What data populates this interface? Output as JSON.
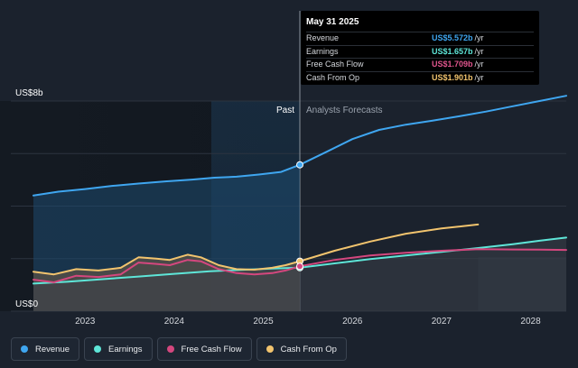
{
  "chart_data": {
    "type": "line",
    "y_axis_labels": {
      "top": "US$8b",
      "bottom": "US$0"
    },
    "ylim": [
      0,
      8
    ],
    "x_ticks": [
      "2023",
      "2024",
      "2025",
      "2026",
      "2027",
      "2028"
    ],
    "xlim": [
      2022.42,
      2028.4
    ],
    "divider_x": 2025.41,
    "forecast_end_x": 2027.41,
    "past_label": "Past",
    "forecast_label": "Analysts Forecasts",
    "series": [
      {
        "name": "Revenue",
        "color": "#3fa6f0",
        "points": [
          [
            2022.42,
            4.4
          ],
          [
            2022.7,
            4.55
          ],
          [
            2023.0,
            4.65
          ],
          [
            2023.3,
            4.77
          ],
          [
            2023.6,
            4.86
          ],
          [
            2023.9,
            4.94
          ],
          [
            2024.2,
            5.01
          ],
          [
            2024.45,
            5.08
          ],
          [
            2024.7,
            5.12
          ],
          [
            2024.95,
            5.2
          ],
          [
            2025.2,
            5.3
          ],
          [
            2025.41,
            5.572
          ],
          [
            2025.7,
            6.05
          ],
          [
            2026.0,
            6.55
          ],
          [
            2026.3,
            6.9
          ],
          [
            2026.6,
            7.1
          ],
          [
            2026.9,
            7.25
          ],
          [
            2027.2,
            7.42
          ],
          [
            2027.5,
            7.6
          ],
          [
            2027.8,
            7.8
          ],
          [
            2028.1,
            8.0
          ],
          [
            2028.4,
            8.2
          ]
        ]
      },
      {
        "name": "Earnings",
        "color": "#5ee6d8",
        "points": [
          [
            2022.42,
            1.05
          ],
          [
            2022.8,
            1.12
          ],
          [
            2023.2,
            1.22
          ],
          [
            2023.6,
            1.32
          ],
          [
            2024.0,
            1.42
          ],
          [
            2024.4,
            1.52
          ],
          [
            2024.8,
            1.58
          ],
          [
            2025.1,
            1.62
          ],
          [
            2025.41,
            1.657
          ],
          [
            2025.8,
            1.82
          ],
          [
            2026.2,
            1.98
          ],
          [
            2026.6,
            2.12
          ],
          [
            2027.0,
            2.26
          ],
          [
            2027.4,
            2.4
          ],
          [
            2027.8,
            2.55
          ],
          [
            2028.1,
            2.68
          ],
          [
            2028.4,
            2.8
          ]
        ]
      },
      {
        "name": "Free Cash Flow",
        "color": "#d4477e",
        "points": [
          [
            2022.42,
            1.2
          ],
          [
            2022.65,
            1.1
          ],
          [
            2022.9,
            1.35
          ],
          [
            2023.15,
            1.3
          ],
          [
            2023.4,
            1.4
          ],
          [
            2023.6,
            1.85
          ],
          [
            2023.8,
            1.8
          ],
          [
            2023.95,
            1.75
          ],
          [
            2024.15,
            1.95
          ],
          [
            2024.3,
            1.9
          ],
          [
            2024.5,
            1.6
          ],
          [
            2024.7,
            1.45
          ],
          [
            2024.9,
            1.4
          ],
          [
            2025.1,
            1.45
          ],
          [
            2025.25,
            1.55
          ],
          [
            2025.41,
            1.709
          ],
          [
            2025.8,
            1.95
          ],
          [
            2026.2,
            2.12
          ],
          [
            2026.6,
            2.22
          ],
          [
            2027.0,
            2.3
          ],
          [
            2027.41,
            2.36
          ],
          [
            2027.8,
            2.35
          ],
          [
            2028.1,
            2.34
          ],
          [
            2028.4,
            2.33
          ]
        ]
      },
      {
        "name": "Cash From Op",
        "color": "#f2c46e",
        "points": [
          [
            2022.42,
            1.5
          ],
          [
            2022.65,
            1.4
          ],
          [
            2022.9,
            1.6
          ],
          [
            2023.15,
            1.55
          ],
          [
            2023.4,
            1.65
          ],
          [
            2023.6,
            2.05
          ],
          [
            2023.8,
            2.0
          ],
          [
            2023.95,
            1.95
          ],
          [
            2024.15,
            2.15
          ],
          [
            2024.3,
            2.05
          ],
          [
            2024.5,
            1.75
          ],
          [
            2024.7,
            1.6
          ],
          [
            2024.9,
            1.58
          ],
          [
            2025.1,
            1.65
          ],
          [
            2025.25,
            1.75
          ],
          [
            2025.41,
            1.901
          ],
          [
            2025.8,
            2.3
          ],
          [
            2026.2,
            2.65
          ],
          [
            2026.6,
            2.95
          ],
          [
            2027.0,
            3.15
          ],
          [
            2027.41,
            3.3
          ]
        ]
      }
    ]
  },
  "tooltip": {
    "date": "May 31 2025",
    "rows": [
      {
        "name": "Revenue",
        "value": "US$5.572b",
        "unit": "/yr",
        "color": "#3fa6f0"
      },
      {
        "name": "Earnings",
        "value": "US$1.657b",
        "unit": "/yr",
        "color": "#5ee6d8"
      },
      {
        "name": "Free Cash Flow",
        "value": "US$1.709b",
        "unit": "/yr",
        "color": "#d4477e"
      },
      {
        "name": "Cash From Op",
        "value": "US$1.901b",
        "unit": "/yr",
        "color": "#f2c46e"
      }
    ]
  },
  "legend": [
    {
      "label": "Revenue",
      "color": "#3fa6f0"
    },
    {
      "label": "Earnings",
      "color": "#5ee6d8"
    },
    {
      "label": "Free Cash Flow",
      "color": "#d4477e"
    },
    {
      "label": "Cash From Op",
      "color": "#f2c46e"
    }
  ]
}
